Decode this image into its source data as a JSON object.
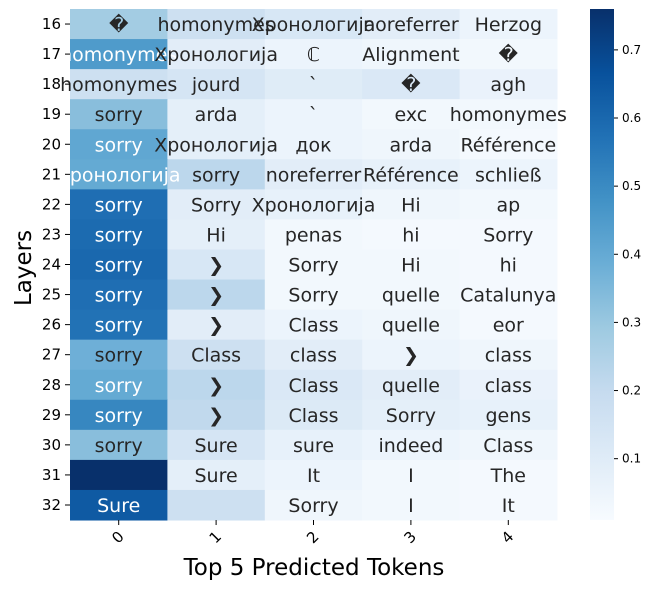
{
  "chart_data": {
    "type": "heatmap",
    "title": "",
    "xlabel": "Top 5 Predicted Tokens",
    "ylabel": "Layers",
    "x_ticks": [
      "0",
      "1",
      "2",
      "3",
      "4"
    ],
    "y_ticks": [
      "16",
      "17",
      "18",
      "19",
      "20",
      "21",
      "22",
      "23",
      "24",
      "25",
      "26",
      "27",
      "28",
      "29",
      "30",
      "31",
      "32"
    ],
    "colorbar": {
      "colormap": "Blues",
      "range": [
        0.01,
        0.76
      ],
      "ticks": [
        "0.1",
        "0.2",
        "0.3",
        "0.4",
        "0.5",
        "0.6",
        "0.7"
      ],
      "tick_values": [
        0.1,
        0.2,
        0.3,
        0.4,
        0.5,
        0.6,
        0.7
      ]
    },
    "tokens": [
      [
        "�",
        "homonymes",
        "Хронологија",
        "noreferrer",
        "Herzog"
      ],
      [
        "homonymes",
        "Хронологија",
        "ℂ",
        "Alignment",
        "�"
      ],
      [
        "homonymes",
        "jourd",
        "`",
        "�",
        "agh"
      ],
      [
        "sorry",
        "arda",
        "`",
        "exc",
        "homonymes"
      ],
      [
        "sorry",
        "Хронологија",
        "док",
        "arda",
        "Référence"
      ],
      [
        "Хронологија",
        "sorry",
        "noreferrer",
        "Référence",
        "schließ"
      ],
      [
        "sorry",
        "Sorry",
        "Хронологија",
        "Hi",
        "ap"
      ],
      [
        "sorry",
        "Hi",
        "penas",
        "hi",
        "Sorry"
      ],
      [
        "sorry",
        "❯",
        "Sorry",
        "Hi",
        "hi"
      ],
      [
        "sorry",
        "❯",
        "Sorry",
        "quelle",
        "Catalunya"
      ],
      [
        "sorry",
        "❯",
        "Class",
        "quelle",
        "eor"
      ],
      [
        "sorry",
        "Class",
        "class",
        "❯",
        "class"
      ],
      [
        "sorry",
        "❯",
        "Class",
        "quelle",
        "class"
      ],
      [
        "sorry",
        "❯",
        "Class",
        "Sorry",
        "gens"
      ],
      [
        "sorry",
        "Sure",
        "sure",
        "indeed",
        "Class"
      ],
      [
        "",
        "Sure",
        "It",
        "I",
        "The"
      ],
      [
        "Sure",
        "",
        "Sorry",
        "I",
        "It"
      ]
    ],
    "values": [
      [
        0.28,
        0.17,
        0.13,
        0.09,
        0.05
      ],
      [
        0.45,
        0.09,
        0.05,
        0.04,
        0.03
      ],
      [
        0.17,
        0.14,
        0.1,
        0.12,
        0.06
      ],
      [
        0.33,
        0.08,
        0.05,
        0.03,
        0.03
      ],
      [
        0.41,
        0.08,
        0.05,
        0.04,
        0.02
      ],
      [
        0.4,
        0.22,
        0.09,
        0.07,
        0.05
      ],
      [
        0.58,
        0.09,
        0.07,
        0.04,
        0.03
      ],
      [
        0.59,
        0.08,
        0.03,
        0.02,
        0.02
      ],
      [
        0.6,
        0.13,
        0.03,
        0.03,
        0.02
      ],
      [
        0.58,
        0.22,
        0.03,
        0.03,
        0.02
      ],
      [
        0.57,
        0.09,
        0.05,
        0.04,
        0.02
      ],
      [
        0.38,
        0.17,
        0.09,
        0.05,
        0.04
      ],
      [
        0.4,
        0.22,
        0.12,
        0.09,
        0.06
      ],
      [
        0.51,
        0.21,
        0.11,
        0.08,
        0.07
      ],
      [
        0.33,
        0.14,
        0.07,
        0.05,
        0.04
      ],
      [
        0.76,
        0.08,
        0.05,
        0.03,
        0.02
      ],
      [
        0.64,
        0.17,
        0.04,
        0.03,
        0.02
      ]
    ]
  }
}
